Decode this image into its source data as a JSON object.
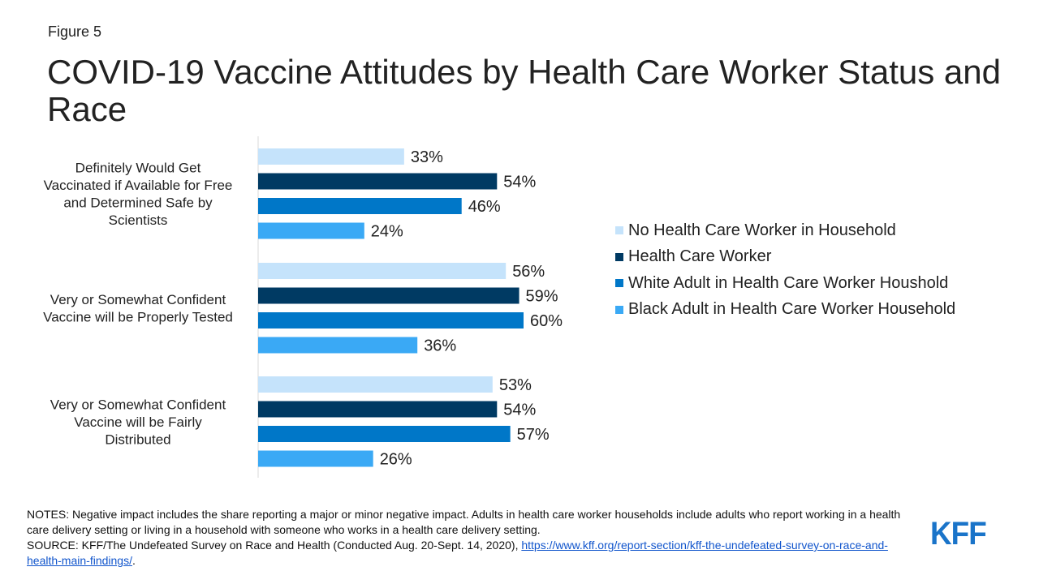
{
  "figure_label": "Figure 5",
  "title": "COVID-19 Vaccine Attitudes by Health Care Worker Status and Race",
  "chart_data": {
    "type": "bar",
    "orientation": "horizontal",
    "categories": [
      "Definitely Would Get Vaccinated if Available for Free and Determined Safe by Scientists",
      "Very or Somewhat Confident Vaccine will be Properly Tested",
      "Very or Somewhat Confident Vaccine will be Fairly Distributed"
    ],
    "series": [
      {
        "name": "No Health Care Worker in Household",
        "color": "#c5e3fb",
        "values": [
          33,
          56,
          53
        ]
      },
      {
        "name": "Health Care Worker",
        "color": "#003a63",
        "values": [
          54,
          59,
          54
        ]
      },
      {
        "name": "White Adult in Health Care Worker Houshold",
        "color": "#0077c8",
        "values": [
          46,
          60,
          57
        ]
      },
      {
        "name": "Black Adult in Health Care Worker Household",
        "color": "#3aa9f5",
        "values": [
          24,
          36,
          26
        ]
      }
    ],
    "value_suffix": "%",
    "xlim": [
      0,
      100
    ],
    "grid": false,
    "legend_position": "right"
  },
  "notes": {
    "notes_text": "NOTES: Negative impact includes the share reporting a major or minor negative impact. Adults in health care worker households include adults who report working in a health care delivery setting or living in a household with someone who works in a health care delivery setting.",
    "source_prefix": "SOURCE: KFF/The Undefeated Survey on Race and Health (Conducted Aug. 20-Sept. 14, 2020), ",
    "source_link": "https://www.kff.org/report-section/kff-the-undefeated-survey-on-race-and-health-main-findings/",
    "source_suffix": "."
  },
  "logo": {
    "text": "KFF",
    "color": "#1a74c9"
  }
}
